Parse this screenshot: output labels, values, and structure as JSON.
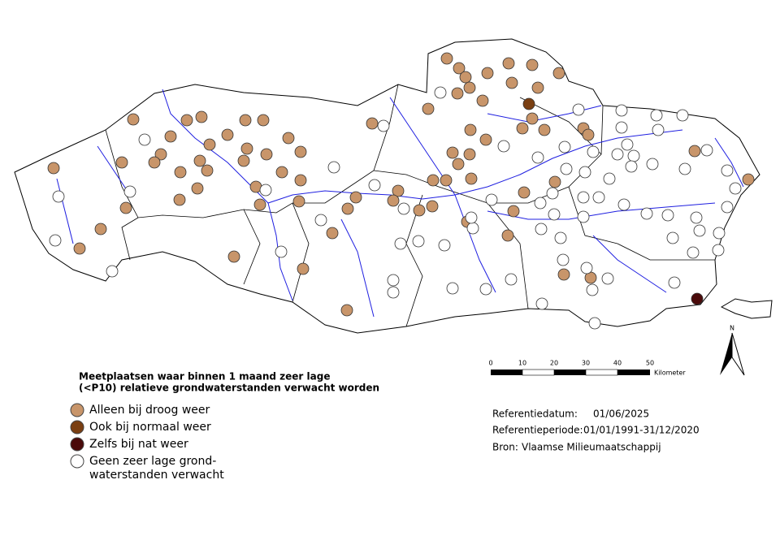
{
  "legend": {
    "title": [
      "Meetplaatsen waar binnen 1 maand zeer lage",
      "(<P10) relatieve grondwaterstanden verwacht worden"
    ],
    "items": [
      {
        "label": [
          "Alleen bij droog weer"
        ],
        "color": "#c8956a"
      },
      {
        "label": [
          "Ook bij normaal weer"
        ],
        "color": "#7a3f12"
      },
      {
        "label": [
          "Zelfs bij nat weer"
        ],
        "color": "#4a0a0a"
      },
      {
        "label": [
          "Geen zeer lage grond-",
          "waterstanden verwacht"
        ],
        "color": "#ffffff"
      }
    ]
  },
  "scale_bar": {
    "ticks": [
      0,
      10,
      20,
      30,
      40,
      50
    ],
    "unit": "Kilometer"
  },
  "north_arrow": "N",
  "info": [
    {
      "label": "Referentiedatum:",
      "value": "01/06/2025"
    },
    {
      "label": "Referentieperiode:",
      "value": "01/01/1991-31/12/2020"
    },
    {
      "label": "Bron:",
      "value": "Vlaamse Milieumaatschappij"
    }
  ]
}
